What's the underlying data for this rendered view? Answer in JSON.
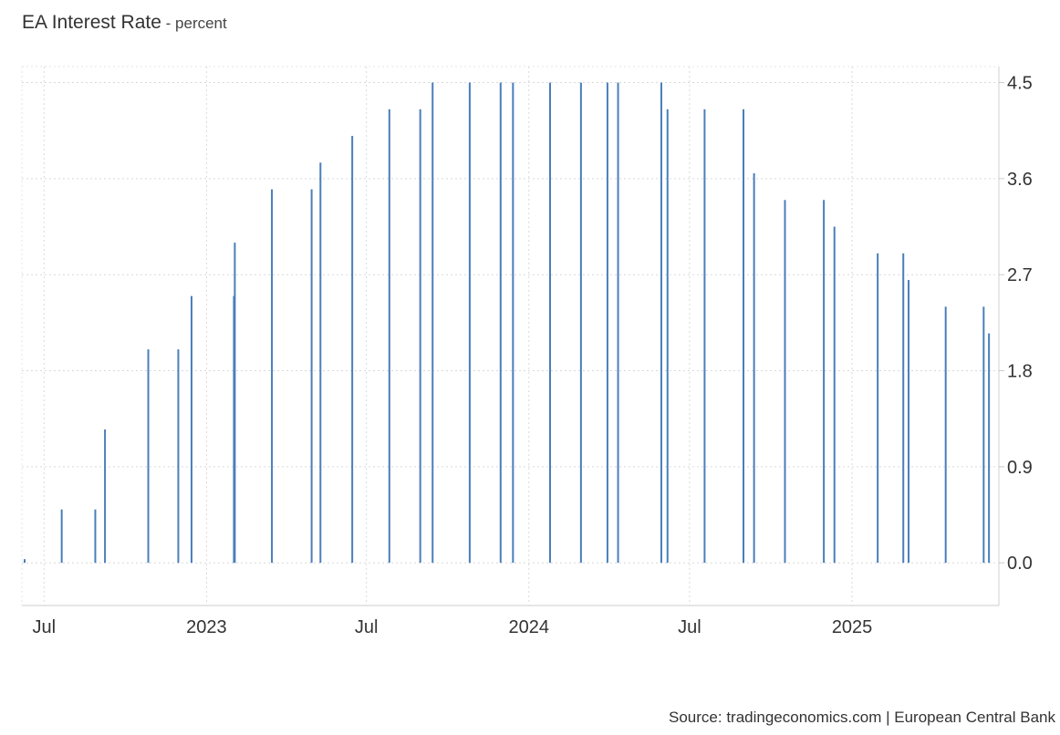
{
  "title": "EA Interest Rate",
  "subtitle": "percent",
  "source": "Source: tradingeconomics.com | European Central Bank",
  "chart_data": {
    "type": "bar",
    "title": "EA Interest Rate",
    "subtitle": "percent",
    "xlabel": "",
    "ylabel": "",
    "ylim": [
      -0.4,
      4.65
    ],
    "grid": true,
    "y_axis_position": "right",
    "y_ticks": [
      0,
      0.9,
      1.8,
      2.7,
      3.6,
      4.5
    ],
    "y_tick_labels": [
      "0.0",
      "0.9",
      "1.8",
      "2.7",
      "3.6",
      "4.5"
    ],
    "x_ticks": [
      "2022-07-01",
      "2023-01-01",
      "2023-07-01",
      "2024-01-01",
      "2024-07-01",
      "2025-01-01"
    ],
    "x_tick_labels": [
      "Jul",
      "2023",
      "Jul",
      "2024",
      "Jul",
      "2025"
    ],
    "color": "#4a7ebb",
    "series": [
      {
        "x": [
          "2022-06-09",
          "2022-07-21",
          "2022-08-28",
          "2022-09-08",
          "2022-10-27",
          "2022-11-30",
          "2022-12-15",
          "2023-02-01",
          "2023-02-02",
          "2023-03-16",
          "2023-04-30",
          "2023-05-10",
          "2023-06-15",
          "2023-07-27",
          "2023-08-31",
          "2023-09-14",
          "2023-10-26",
          "2023-11-30",
          "2023-12-14",
          "2024-01-25",
          "2024-02-29",
          "2024-03-30",
          "2024-04-11",
          "2024-05-30",
          "2024-06-06",
          "2024-07-18",
          "2024-08-31",
          "2024-09-12",
          "2024-10-17",
          "2024-11-30",
          "2024-12-12",
          "2025-01-30",
          "2025-02-28",
          "2025-03-06",
          "2025-04-17",
          "2025-05-30",
          "2025-06-05"
        ],
        "values": [
          0.0,
          0.5,
          0.5,
          1.25,
          2.0,
          2.0,
          2.5,
          2.5,
          3.0,
          3.5,
          3.5,
          3.75,
          4.0,
          4.25,
          4.25,
          4.5,
          4.5,
          4.5,
          4.5,
          4.5,
          4.5,
          4.5,
          4.5,
          4.5,
          4.25,
          4.25,
          4.25,
          3.65,
          3.4,
          3.4,
          3.15,
          2.9,
          2.9,
          2.65,
          2.4,
          2.4,
          2.15
        ]
      }
    ]
  }
}
